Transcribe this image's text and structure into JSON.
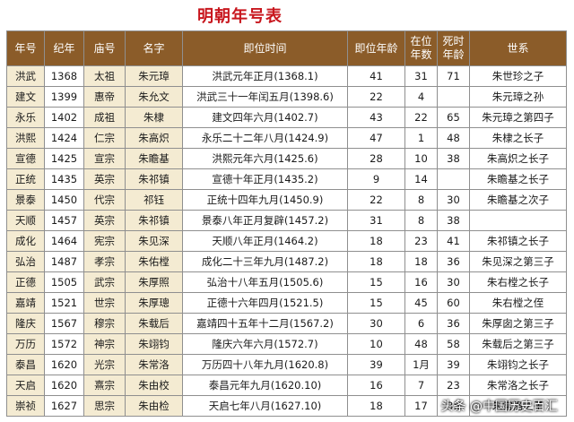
{
  "title": "明朝年号表",
  "headers": {
    "era": "年号",
    "year": "纪年",
    "temple": "庙号",
    "name": "名字",
    "accession": "即位时间",
    "age_at_accession": "即位年龄",
    "reign_years_1": "在位",
    "reign_years_2": "年数",
    "death_age_1": "死时",
    "death_age_2": "年龄",
    "lineage": "世系"
  },
  "rows": [
    {
      "era": "洪武",
      "year": "1368",
      "temple": "太祖",
      "name": "朱元璋",
      "accession": "洪武元年正月(1368.1)",
      "age": "41",
      "reign": "31",
      "death": "71",
      "lineage": "朱世珍之子"
    },
    {
      "era": "建文",
      "year": "1399",
      "temple": "惠帝",
      "name": "朱允文",
      "accession": "洪武三十一年闰五月(1398.6)",
      "age": "22",
      "reign": "4",
      "death": "",
      "lineage": "朱元璋之孙"
    },
    {
      "era": "永乐",
      "year": "1402",
      "temple": "成祖",
      "name": "朱棣",
      "accession": "建文四年六月(1402.7)",
      "age": "43",
      "reign": "22",
      "death": "65",
      "lineage": "朱元璋之第四子"
    },
    {
      "era": "洪熙",
      "year": "1424",
      "temple": "仁宗",
      "name": "朱高炽",
      "accession": "永乐二十二年八月(1424.9)",
      "age": "47",
      "reign": "1",
      "death": "48",
      "lineage": "朱棣之长子"
    },
    {
      "era": "宣德",
      "year": "1425",
      "temple": "宣宗",
      "name": "朱瞻基",
      "accession": "洪熙元年六月(1425.6)",
      "age": "28",
      "reign": "10",
      "death": "38",
      "lineage": "朱高炽之长子"
    },
    {
      "era": "正统",
      "year": "1435",
      "temple": "英宗",
      "name": "朱祁镇",
      "accession": "宣德十年正月(1435.2)",
      "age": "9",
      "reign": "14",
      "death": "",
      "lineage": "朱瞻基之长子"
    },
    {
      "era": "景泰",
      "year": "1450",
      "temple": "代宗",
      "name": "祁钰",
      "accession": "正统十四年九月(1450.9)",
      "age": "22",
      "reign": "8",
      "death": "30",
      "lineage": "朱瞻基之次子"
    },
    {
      "era": "天顺",
      "year": "1457",
      "temple": "英宗",
      "name": "朱祁镇",
      "accession": "景泰八年正月复辟(1457.2)",
      "age": "31",
      "reign": "8",
      "death": "38",
      "lineage": ""
    },
    {
      "era": "成化",
      "year": "1464",
      "temple": "宪宗",
      "name": "朱见深",
      "accession": "天顺八年正月(1464.2)",
      "age": "18",
      "reign": "23",
      "death": "41",
      "lineage": "朱祁镇之长子"
    },
    {
      "era": "弘治",
      "year": "1487",
      "temple": "孝宗",
      "name": "朱佑樘",
      "accession": "成化二十三年九月(1487.2)",
      "age": "18",
      "reign": "18",
      "death": "36",
      "lineage": "朱见深之第三子"
    },
    {
      "era": "正德",
      "year": "1505",
      "temple": "武宗",
      "name": "朱厚照",
      "accession": "弘治十八年五月(1505.6)",
      "age": "15",
      "reign": "16",
      "death": "30",
      "lineage": "朱右樘之长子"
    },
    {
      "era": "嘉靖",
      "year": "1521",
      "temple": "世宗",
      "name": "朱厚璁",
      "accession": "正德十六年四月(1521.5)",
      "age": "15",
      "reign": "45",
      "death": "60",
      "lineage": "朱右樘之侄"
    },
    {
      "era": "隆庆",
      "year": "1567",
      "temple": "穆宗",
      "name": "朱载后",
      "accession": "嘉靖四十五年十二月(1567.2)",
      "age": "30",
      "reign": "6",
      "death": "36",
      "lineage": "朱厚囱之第三子"
    },
    {
      "era": "万历",
      "year": "1572",
      "temple": "神宗",
      "name": "朱翊钧",
      "accession": "隆庆六年六月(1572.7)",
      "age": "10",
      "reign": "48",
      "death": "58",
      "lineage": "朱载后之第三子"
    },
    {
      "era": "泰昌",
      "year": "1620",
      "temple": "光宗",
      "name": "朱常洛",
      "accession": "万历四十八年九月(1620.8)",
      "age": "39",
      "reign": "1月",
      "death": "39",
      "lineage": "朱翊钧之长子"
    },
    {
      "era": "天启",
      "year": "1620",
      "temple": "熹宗",
      "name": "朱由校",
      "accession": "泰昌元年九月(1620.10)",
      "age": "16",
      "reign": "7",
      "death": "23",
      "lineage": "朱常洛之长子"
    },
    {
      "era": "崇祯",
      "year": "1627",
      "temple": "思宗",
      "name": "朱由检",
      "accession": "天启七年八月(1627.10)",
      "age": "18",
      "reign": "17",
      "death": "35",
      "lineage": "朱常洛之子"
    }
  ],
  "watermark": "头条 @中国历史百汇",
  "colors": {
    "title": "#c8161d",
    "header_bg": "#8b5c29",
    "name_cell_bg": "#f4ebd2"
  }
}
